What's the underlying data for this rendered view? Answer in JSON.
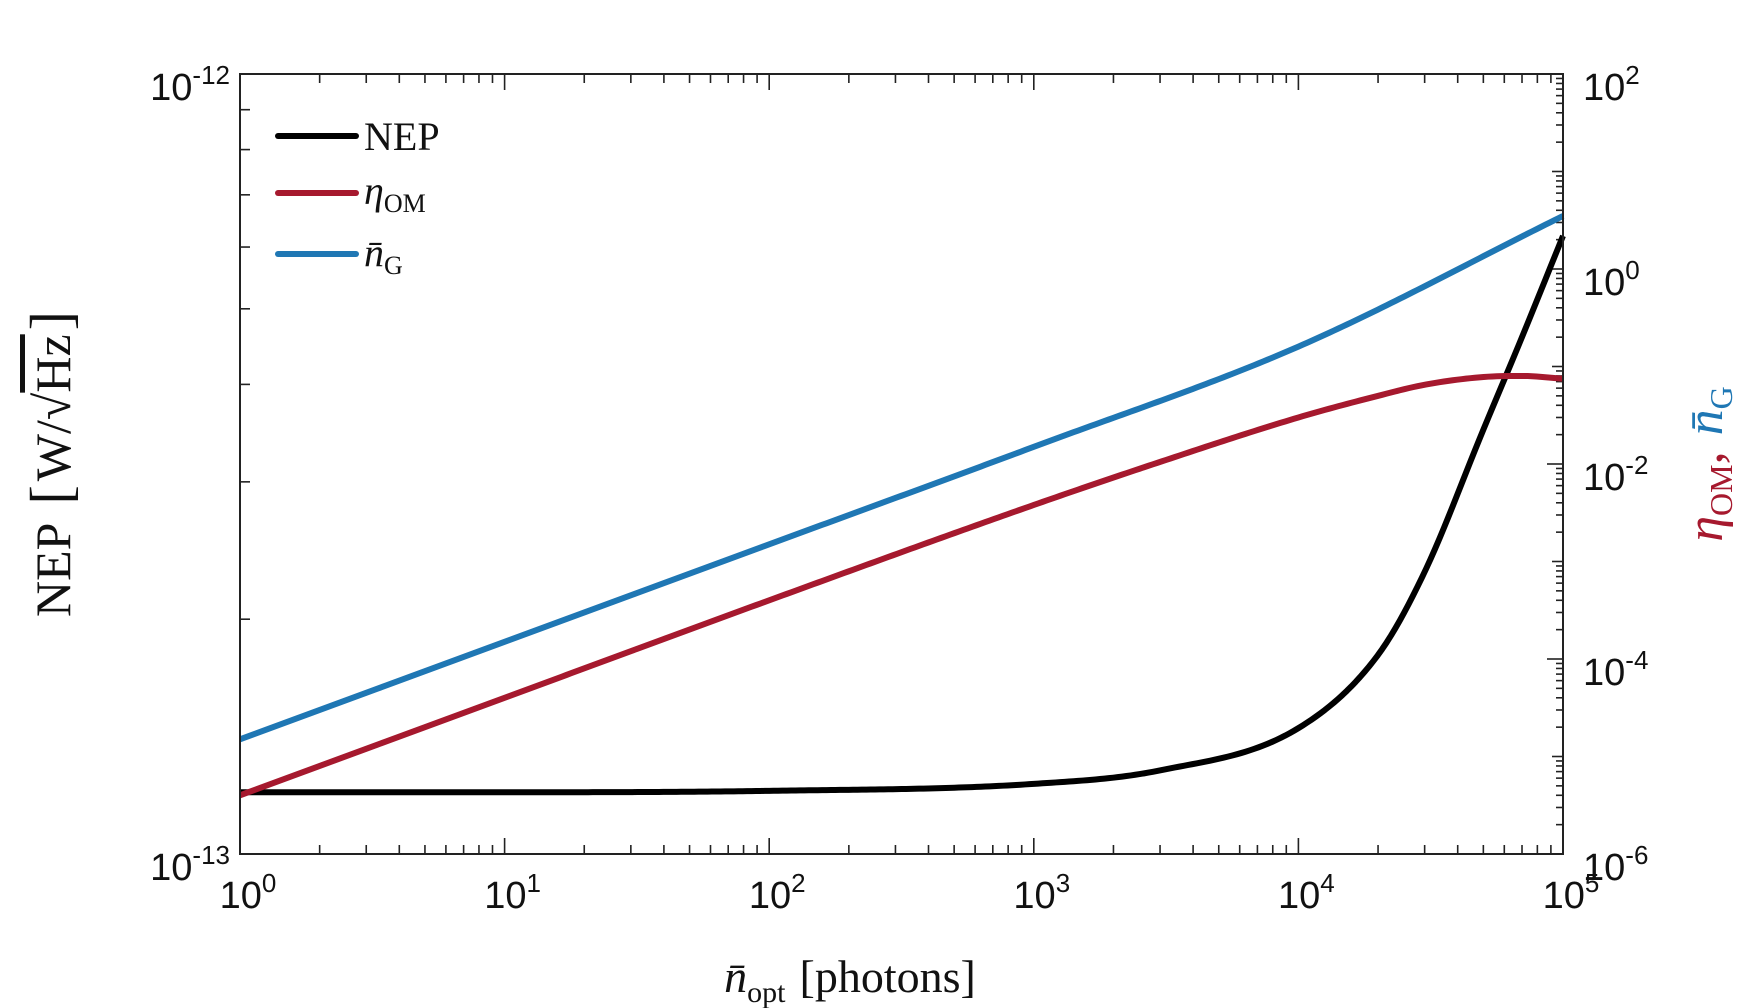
{
  "chart_data": {
    "type": "line",
    "title": "",
    "xlabel": {
      "main": "n̄",
      "sub": "opt",
      "rest": "[photons]"
    },
    "ylabel_left": {
      "main": "NEP",
      "bracket_open": "[",
      "unit_w": "W",
      "slash": "/",
      "sqrt": "√",
      "unit_hz": "Hz",
      "bracket_close": "]"
    },
    "ylabel_right": {
      "eta": "η",
      "eta_sub": "OM",
      "comma": ",",
      "n": "n̄",
      "n_sub": "G"
    },
    "x_scale": "log",
    "xlim": [
      1,
      100000
    ],
    "x_ticks": [
      {
        "base": "10",
        "exp": "0"
      },
      {
        "base": "10",
        "exp": "1"
      },
      {
        "base": "10",
        "exp": "2"
      },
      {
        "base": "10",
        "exp": "3"
      },
      {
        "base": "10",
        "exp": "4"
      },
      {
        "base": "10",
        "exp": "5"
      }
    ],
    "y_left_scale": "log",
    "y_left_lim": [
      1e-13,
      1e-12
    ],
    "y_left_ticks": [
      {
        "base": "10",
        "exp": "-13"
      },
      {
        "base": "10",
        "exp": "-12"
      }
    ],
    "y_right_scale": "log",
    "y_right_lim": [
      1e-06,
      100
    ],
    "y_right_ticks": [
      {
        "base": "10",
        "exp": "-6"
      },
      {
        "base": "10",
        "exp": "-4"
      },
      {
        "base": "10",
        "exp": "-2"
      },
      {
        "base": "10",
        "exp": "0"
      },
      {
        "base": "10",
        "exp": "2"
      }
    ],
    "grid": false,
    "legend_position": "top-left",
    "series": [
      {
        "name": "NEP",
        "legend_main": "NEP",
        "legend_sub": "",
        "axis": "left",
        "color": "#000000",
        "x": [
          1,
          10,
          100,
          1000,
          3000,
          10000,
          20000,
          30000,
          50000,
          70000,
          100000
        ],
        "y": [
          1.2e-13,
          1.2e-13,
          1.205e-13,
          1.23e-13,
          1.28e-13,
          1.45e-13,
          1.8e-13,
          2.3e-13,
          3.5e-13,
          4.6e-13,
          6.2e-13
        ]
      },
      {
        "name": "eta_OM",
        "legend_main": "η",
        "legend_sub": "OM",
        "axis": "right",
        "color": "#a6192e",
        "x": [
          1,
          10,
          100,
          1000,
          3000,
          10000,
          20000,
          30000,
          50000,
          70000,
          100000
        ],
        "y": [
          4e-06,
          4e-05,
          0.0004,
          0.0038,
          0.0105,
          0.03,
          0.05,
          0.065,
          0.078,
          0.08,
          0.075
        ]
      },
      {
        "name": "n_G",
        "legend_main": "n̄",
        "legend_sub": "G",
        "axis": "right",
        "color": "#1f77b4",
        "x": [
          1,
          10,
          100,
          1000,
          10000,
          100000
        ],
        "y": [
          1.5e-05,
          0.00015,
          0.0015,
          0.015,
          0.16,
          3.5
        ]
      }
    ]
  }
}
